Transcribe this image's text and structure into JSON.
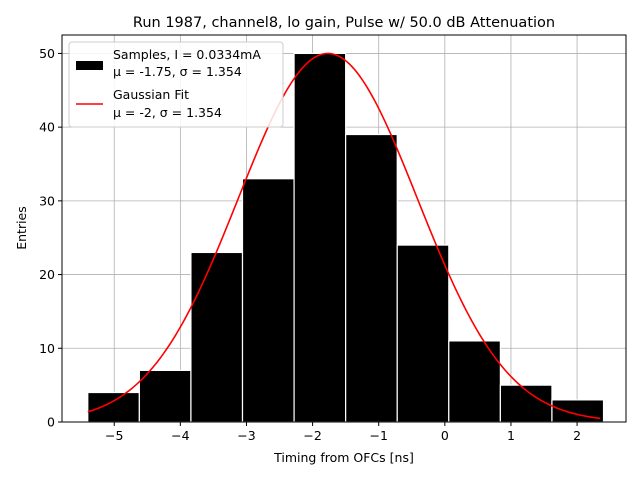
{
  "chart_data": {
    "type": "bar",
    "title": "Run 1987, channel8, lo gain, Pulse w/ 50.0 dB Attenuation",
    "xlabel": "Timing from OFCs [ns]",
    "ylabel": "Entries",
    "xlim": [
      -5.79,
      2.74
    ],
    "ylim": [
      0,
      52.5
    ],
    "xticks": [
      -5,
      -4,
      -3,
      -2,
      -1,
      0,
      1,
      2
    ],
    "xtick_labels": [
      "−5",
      "−4",
      "−3",
      "−2",
      "−1",
      "0",
      "1",
      "2"
    ],
    "yticks": [
      0,
      10,
      20,
      30,
      40,
      50
    ],
    "ytick_labels": [
      "0",
      "10",
      "20",
      "30",
      "40",
      "50"
    ],
    "grid": true,
    "legend_position": "top-left",
    "histogram": {
      "name": "Samples, I = 0.0334mA",
      "stats": "μ = -1.75, σ = 1.354",
      "color": "#000000",
      "edgecolor": "#ffffff",
      "bin_edges": [
        -5.4,
        -4.62,
        -3.84,
        -3.06,
        -2.28,
        -1.5,
        -0.72,
        0.06,
        0.84,
        1.62,
        2.4
      ],
      "values": [
        4,
        7,
        23,
        33,
        50,
        39,
        24,
        11,
        5,
        3
      ]
    },
    "fit": {
      "name": "Gaussian Fit",
      "stats": "μ = -2, σ = 1.354",
      "color": "#ff0000",
      "mu": -1.77,
      "sigma": 1.354,
      "amplitude": 50,
      "x_range": [
        -5.4,
        2.35
      ]
    }
  }
}
